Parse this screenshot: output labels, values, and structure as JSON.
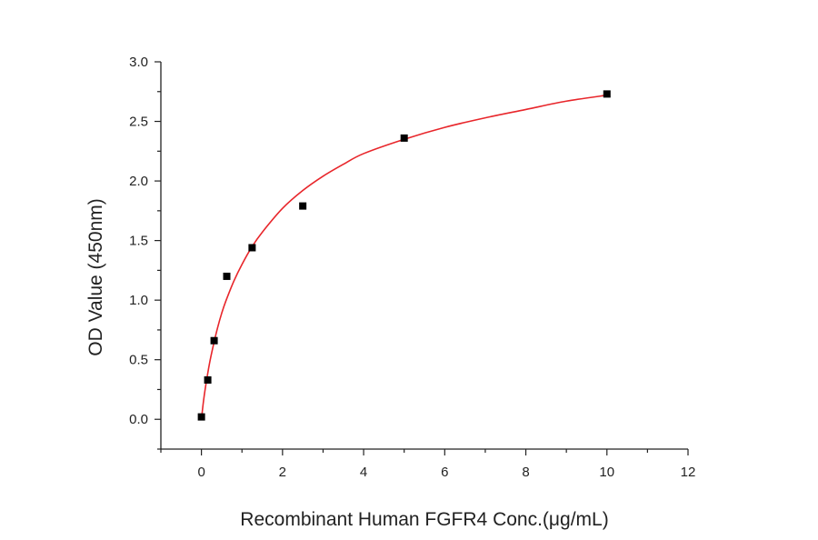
{
  "chart_data": {
    "type": "scatter",
    "xlabel": "Recombinant Human FGFR4 Conc.(μg/mL)",
    "ylabel": "OD Value (450nm)",
    "xlim": [
      -1,
      12
    ],
    "ylim": [
      -0.25,
      3.0
    ],
    "x_ticks": [
      0,
      2,
      4,
      6,
      8,
      10,
      12
    ],
    "x_tick_labels": [
      "0",
      "2",
      "4",
      "6",
      "8",
      "10",
      "12"
    ],
    "y_ticks": [
      0.0,
      0.5,
      1.0,
      1.5,
      2.0,
      2.5,
      3.0
    ],
    "y_tick_labels": [
      "0.0",
      "0.5",
      "1.0",
      "1.5",
      "2.0",
      "2.5",
      "3.0"
    ],
    "grid": false,
    "series": [
      {
        "kind": "points",
        "marker": "square",
        "color": "#000000",
        "x": [
          0,
          0.156,
          0.313,
          0.625,
          1.25,
          2.5,
          5,
          10
        ],
        "y": [
          0.02,
          0.33,
          0.66,
          1.2,
          1.44,
          1.79,
          2.36,
          2.73
        ]
      },
      {
        "kind": "fit-curve",
        "color": "#e8262b",
        "x": [
          0,
          0.05,
          0.1,
          0.2,
          0.3,
          0.4,
          0.5,
          0.6,
          0.8,
          1.0,
          1.25,
          1.5,
          2.0,
          2.5,
          3.0,
          3.5,
          4.0,
          5.0,
          6.0,
          7.0,
          8.0,
          9.0,
          10.0
        ],
        "y": [
          0.0,
          0.15,
          0.27,
          0.47,
          0.63,
          0.77,
          0.89,
          0.99,
          1.16,
          1.3,
          1.45,
          1.57,
          1.77,
          1.92,
          2.04,
          2.14,
          2.23,
          2.35,
          2.45,
          2.53,
          2.6,
          2.67,
          2.72
        ]
      }
    ]
  }
}
